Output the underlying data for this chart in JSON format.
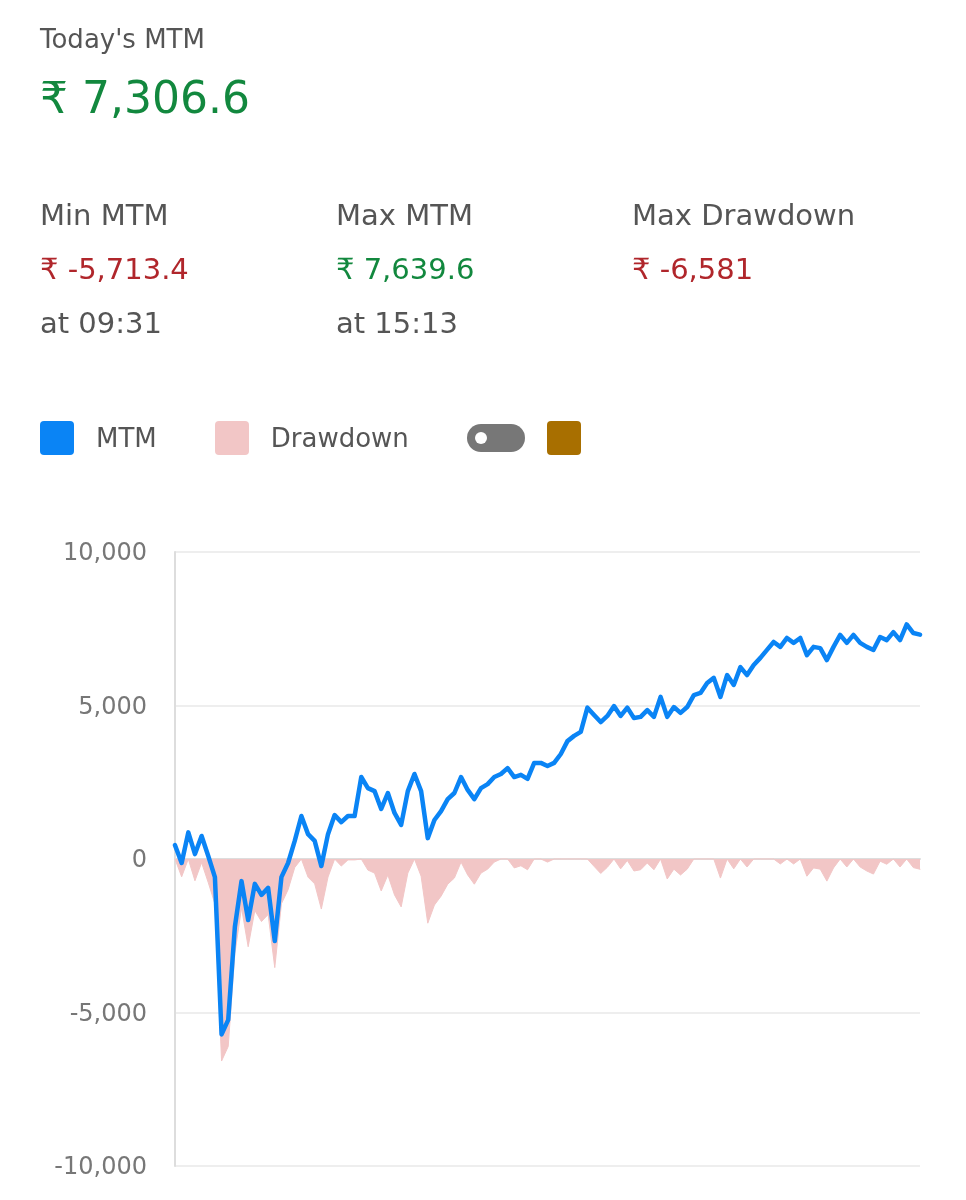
{
  "chart_data": {
    "type": "line",
    "title": "Today's MTM",
    "subtitle": "₹ 7,306.6",
    "annotations": [
      "Min MTM",
      "₹ -5,713.4",
      "at 09:31",
      "Max MTM",
      "₹ 7,639.6",
      "at 15:13",
      "Max Drawdown",
      "₹ -6,581"
    ],
    "categories": [
      null,
      null,
      null,
      null,
      null,
      null,
      null,
      null,
      null,
      null,
      null,
      null,
      null,
      null,
      null,
      null,
      null,
      null,
      null,
      null,
      null,
      null,
      null,
      null,
      null,
      null,
      null,
      null,
      null,
      null,
      null,
      null,
      null,
      null,
      null,
      null,
      null,
      null,
      null,
      null,
      null,
      null,
      null,
      null,
      null,
      null,
      null,
      null,
      null,
      null,
      null,
      null,
      null,
      null,
      null,
      null,
      null,
      null,
      null,
      null,
      null,
      null,
      null,
      null,
      null,
      null,
      null,
      null,
      null,
      null,
      null,
      null,
      null,
      null,
      null,
      null,
      null,
      null,
      null,
      null,
      null,
      null,
      null,
      null,
      null,
      null,
      null,
      null,
      null,
      null,
      null,
      null,
      null,
      null,
      null,
      null,
      null,
      null,
      null,
      null,
      null,
      null,
      null,
      null,
      null,
      null,
      null,
      null,
      null,
      null,
      null,
      null,
      null
    ],
    "series": [
      {
        "name": "Drawdown",
        "type": "area",
        "color": "#f2c6c6",
        "values": [
          0,
          -580,
          0,
          -708,
          -118,
          -768,
          -1458,
          -6581,
          -6108,
          -3078,
          -1588,
          -2858,
          -1678,
          -2038,
          -1808,
          -3538,
          -1458,
          -998,
          -278,
          0,
          -590,
          -810,
          -1630,
          -590,
          0,
          -230,
          -30,
          -30,
          0,
          -360,
          -460,
          -1040,
          -520,
          -1170,
          -1560,
          -460,
          0,
          -560,
          -2090,
          -1500,
          -1210,
          -820,
          -620,
          -100,
          -520,
          -820,
          -460,
          -330,
          -100,
          0,
          0,
          -290,
          -220,
          -350,
          0,
          0,
          -100,
          0,
          0,
          0,
          0,
          0,
          0,
          -240,
          -470,
          -270,
          0,
          -320,
          -50,
          -390,
          -350,
          -130,
          -350,
          0,
          -650,
          -330,
          -520,
          -330,
          0,
          0,
          0,
          0,
          -620,
          0,
          -320,
          0,
          -260,
          0,
          0,
          0,
          0,
          -160,
          0,
          -160,
          0,
          -560,
          -290,
          -330,
          -720,
          -290,
          0,
          -260,
          0,
          -260,
          -390,
          -490,
          -70,
          -170,
          0,
          -260,
          0,
          -280,
          -333
        ]
      },
      {
        "name": "MTM",
        "color": "#0a84f5",
        "values": [
          450,
          -130,
          868,
          160,
          750,
          100,
          -590,
          -5713,
          -5240,
          -2210,
          -720,
          -1990,
          -810,
          -1170,
          -940,
          -2670,
          -590,
          -130,
          590,
          1400,
          810,
          590,
          -230,
          810,
          1430,
          1200,
          1400,
          1400,
          2670,
          2310,
          2210,
          1630,
          2150,
          1500,
          1110,
          2210,
          2770,
          2210,
          680,
          1270,
          1560,
          1950,
          2150,
          2670,
          2250,
          1950,
          2310,
          2440,
          2670,
          2770,
          2960,
          2670,
          2740,
          2610,
          3130,
          3130,
          3030,
          3130,
          3420,
          3840,
          4010,
          4140,
          4930,
          4690,
          4460,
          4660,
          4980,
          4660,
          4930,
          4590,
          4630,
          4850,
          4630,
          5280,
          4630,
          4950,
          4760,
          4950,
          5340,
          5410,
          5730,
          5900,
          5280,
          5990,
          5670,
          6250,
          5990,
          6320,
          6550,
          6810,
          7070,
          6910,
          7200,
          7040,
          7200,
          6640,
          6910,
          6870,
          6480,
          6910,
          7300,
          7040,
          7300,
          7040,
          6910,
          6810,
          7230,
          7130,
          7390,
          7130,
          7640,
          7360,
          7307
        ]
      }
    ],
    "ylim": [
      -10000,
      10000
    ],
    "yticks": [
      {
        "value": -10000,
        "label": "-10,000"
      },
      {
        "value": -5000,
        "label": "-5,000"
      },
      0,
      {
        "value": 5000,
        "label": "5,000"
      },
      {
        "value": 10000,
        "label": "10,000"
      }
    ],
    "grid": "y",
    "legend": "top left",
    "marker": "none",
    "line_style": "solid",
    "tick_labels": "y"
  }
}
